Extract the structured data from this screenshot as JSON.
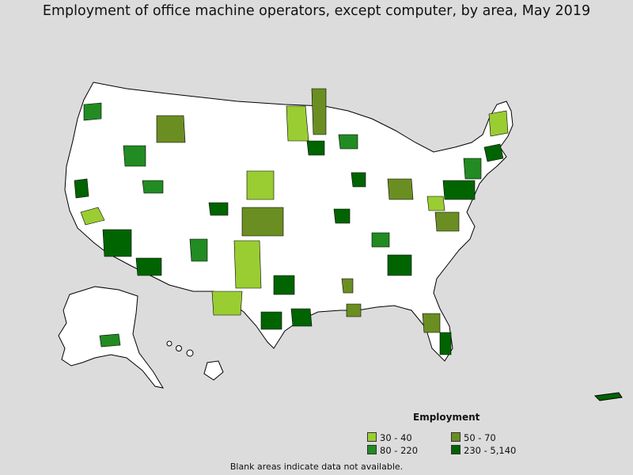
{
  "title": "Employment of office machine operators, except computer, by area, May 2019",
  "legend": {
    "title": "Employment",
    "items": [
      {
        "label": "30 - 40",
        "color": "#9acd32"
      },
      {
        "label": "50 - 70",
        "color": "#6b8e23"
      },
      {
        "label": "80 - 220",
        "color": "#228b22"
      },
      {
        "label": "230 - 5,140",
        "color": "#006400"
      }
    ]
  },
  "note": "Blank areas indicate data not available.",
  "colors": {
    "background": "#dcdcdc",
    "land": "#ffffff",
    "border": "#000000"
  }
}
